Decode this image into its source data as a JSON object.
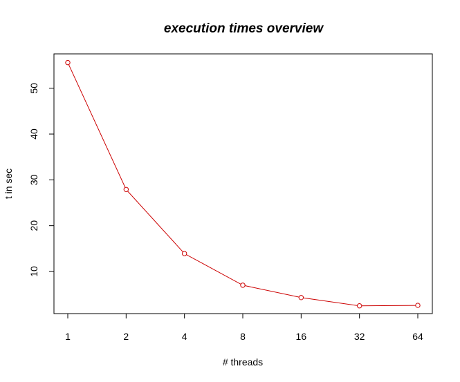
{
  "chart_data": {
    "type": "line",
    "title": "execution times overview",
    "xlabel": "# threads",
    "ylabel": "t in sec",
    "x_scale": "log2",
    "x": [
      1,
      2,
      4,
      8,
      16,
      32,
      64
    ],
    "x_tick_labels": [
      "1",
      "2",
      "4",
      "8",
      "16",
      "32",
      "64"
    ],
    "y_ticks": [
      10,
      20,
      30,
      40,
      50
    ],
    "ylim": [
      0.8,
      57.5
    ],
    "grid": false,
    "legend": "none",
    "series": [
      {
        "values": [
          55.6,
          27.9,
          13.9,
          7.0,
          4.3,
          2.5,
          2.6
        ],
        "color": "#cc0000"
      }
    ]
  }
}
